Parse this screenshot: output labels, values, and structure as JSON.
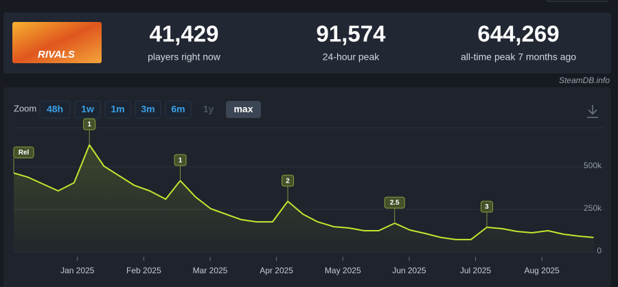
{
  "header": {
    "logo": "RIVALS",
    "stats": [
      {
        "value": "41,429",
        "label": "players right now"
      },
      {
        "value": "91,574",
        "label": "24-hour peak"
      },
      {
        "value": "644,269",
        "label": "all-time peak 7 months ago"
      }
    ]
  },
  "watermark": "SteamDB.info",
  "zoom": {
    "label": "Zoom",
    "options": [
      "48h",
      "1w",
      "1m",
      "3m",
      "6m",
      "1y",
      "max"
    ],
    "active": "max",
    "disabled": [
      "1y"
    ]
  },
  "chart_data": {
    "type": "line",
    "x": [
      0.04,
      0.25,
      0.71,
      0.95,
      1.18,
      1.4,
      1.86,
      2.09,
      2.33,
      2.55,
      2.78,
      3.01,
      3.47,
      3.7,
      3.94,
      4.17,
      4.4,
      4.62,
      4.86,
      5.09,
      5.32,
      5.54,
      5.78,
      6.01,
      6.24,
      6.48,
      6.7,
      6.93,
      7.17,
      7.4,
      7.62,
      7.85,
      8.09,
      8.32,
      8.55,
      8.78
    ],
    "series": [
      {
        "name": "Players",
        "color": "#c5e62f",
        "values": [
          464000,
          440000,
          359000,
          407000,
          629000,
          504000,
          391000,
          359000,
          310000,
          419000,
          323000,
          254000,
          190000,
          177000,
          177000,
          298000,
          222000,
          177000,
          149000,
          141000,
          125000,
          125000,
          169000,
          129000,
          109000,
          85000,
          73000,
          73000,
          145000,
          137000,
          121000,
          113000,
          125000,
          105000,
          93000,
          85000
        ]
      }
    ],
    "xlim": [
      0.04,
      8.94
    ],
    "xticks": [
      {
        "value": 1,
        "label": "Jan 2025"
      },
      {
        "value": 2,
        "label": "Feb 2025"
      },
      {
        "value": 3,
        "label": "Mar 2025"
      },
      {
        "value": 4,
        "label": "Apr 2025"
      },
      {
        "value": 5,
        "label": "May 2025"
      },
      {
        "value": 6,
        "label": "Jun 2025"
      },
      {
        "value": 7,
        "label": "Jul 2025"
      },
      {
        "value": 8,
        "label": "Aug 2025"
      }
    ],
    "ylim": [
      0,
      730000
    ],
    "yticks": [
      0,
      {
        "value": 250000,
        "label": "250k"
      },
      {
        "value": 500000,
        "label": "500k"
      }
    ],
    "grid": true,
    "annotations": [
      {
        "text": "Rel",
        "x": 0.04
      },
      {
        "text": "1",
        "x": 1.18
      },
      {
        "text": "1",
        "x": 2.55
      },
      {
        "text": "2",
        "x": 4.17
      },
      {
        "text": "2.5",
        "x": 5.78
      },
      {
        "text": "3",
        "x": 7.17
      }
    ]
  }
}
